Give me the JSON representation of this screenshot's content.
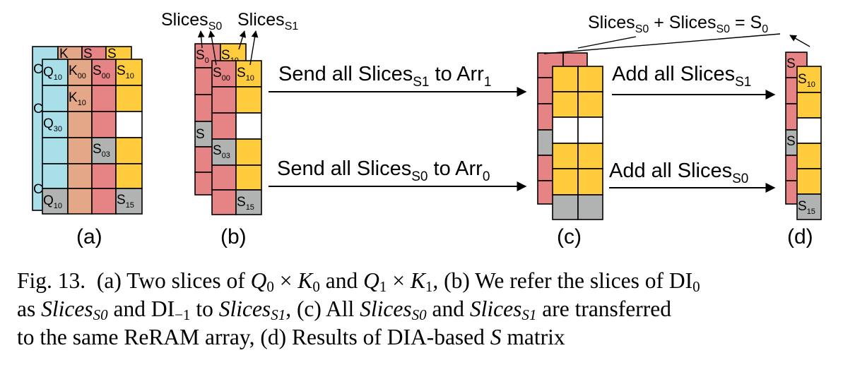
{
  "colors": {
    "q_cyan": "#a8dfe8",
    "k_orange": "#e4a787",
    "s_red": "#e68384",
    "s1_yellow": "#ffcc3e",
    "s_gray": "#b1b3b3",
    "white": "#ffffff"
  },
  "panel_labels": {
    "a": "(a)",
    "b": "(b)",
    "c": "(c)",
    "d": "(d)"
  },
  "panel_a": {
    "q10_top": {
      "main": "Q",
      "sub": "10"
    },
    "k00": {
      "main": "K",
      "sub": "00"
    },
    "s00": {
      "main": "S",
      "sub": "00"
    },
    "s10": {
      "main": "S",
      "sub": "10"
    },
    "k10": {
      "main": "K",
      "sub": "10"
    },
    "q30": {
      "main": "Q",
      "sub": "30"
    },
    "s03": {
      "main": "S",
      "sub": "03"
    },
    "q10_bottom": {
      "main": "Q",
      "sub": "10"
    },
    "s15": {
      "main": "S",
      "sub": "15"
    },
    "back_k": "K",
    "back_s": "S",
    "back_s2": "S",
    "back_c1": "C",
    "back_c2": "C",
    "back_c3": "C"
  },
  "panel_b": {
    "slices_s0": {
      "main": "Slices",
      "sub": "S0"
    },
    "slices_s1": {
      "main": "Slices",
      "sub": "S1"
    },
    "back_s0": {
      "main": "S",
      "sub": "0"
    },
    "back_s10": {
      "main": "S",
      "sub": "10"
    },
    "s00": {
      "main": "S",
      "sub": "00"
    },
    "s10": {
      "main": "S",
      "sub": "10"
    },
    "back_s_mid": "S",
    "s03": {
      "main": "S",
      "sub": "03"
    },
    "s15": {
      "main": "S",
      "sub": "15"
    }
  },
  "arrows": {
    "send_s1": {
      "pre": "Send all Slices",
      "sub1": "S1",
      "mid": " to Arr",
      "sub2": "1"
    },
    "send_s0": {
      "pre": "Send all Slices",
      "sub1": "S0",
      "mid": " to Arr",
      "sub2": "0"
    },
    "add_s1": {
      "pre": "Add all Slices",
      "sub1": "S1"
    },
    "add_s0": {
      "pre": "Add all Slices",
      "sub1": "S0"
    }
  },
  "panel_c": {
    "formula": {
      "a": "Slices",
      "a_sub": "S0",
      "plus": " + ",
      "b": "Slices",
      "b_sub": "S0",
      "eq": " = S",
      "eq_sub": "0"
    }
  },
  "panel_d": {
    "back_s": "S",
    "back_s_mid": "S",
    "s10": {
      "main": "S",
      "sub": "10"
    },
    "s15": {
      "main": "S",
      "sub": "15"
    }
  },
  "caption": {
    "fig": "Fig. 13.",
    "a_part": "(a) Two slices of",
    "q0": "Q",
    "q0_sub": "0",
    "times1": " × ",
    "k0": "K",
    "k0_sub": "0",
    "and1": " and ",
    "q1": "Q",
    "q1_sub": "1",
    "times2": " × ",
    "k1": "K",
    "k1_sub": "1",
    "b_part": ", (b) We refer the slices of DI",
    "di0_sub": "0",
    "as_text": "as ",
    "slices_s0": "Slices",
    "slices_s0_sub": "S0",
    "and_di": " and DI",
    "dim1_sub": "−1",
    "to_text": " to ",
    "slices_s1": "Slices",
    "slices_s1_sub": "S1",
    "c_part": ", (c) All ",
    "slices_s0b": "Slices",
    "slices_s0b_sub": "S0",
    "and2": " and ",
    "slices_s1b": "Slices",
    "slices_s1b_sub": "S1",
    "transferred": " are transferred",
    "line3": "to the same ReRAM array, (d) Results of DIA-based ",
    "s_matrix": "S",
    "matrix_word": " matrix"
  }
}
